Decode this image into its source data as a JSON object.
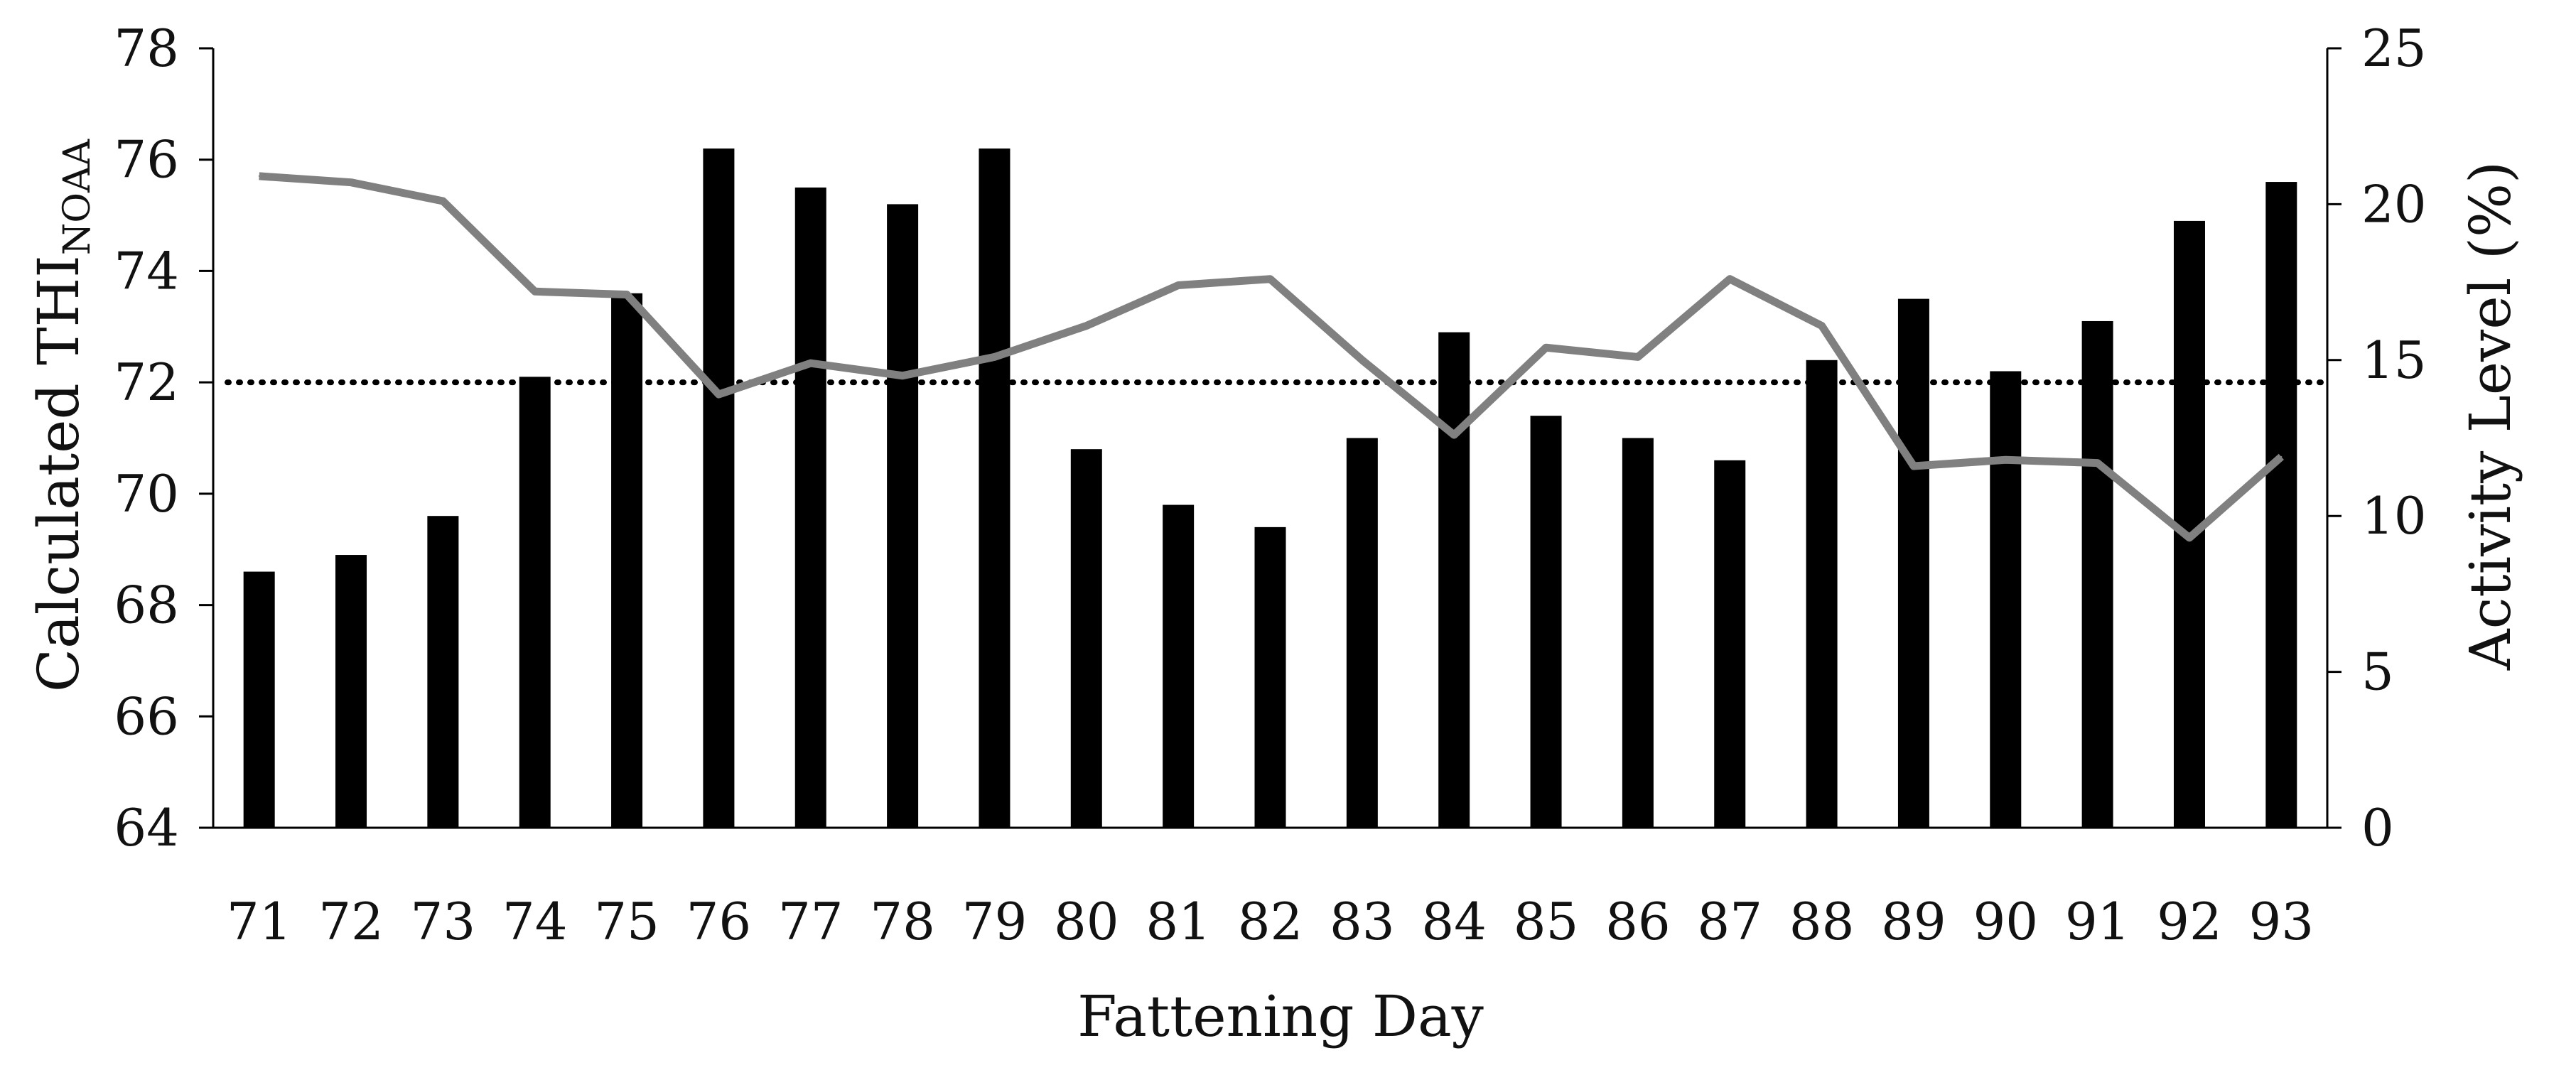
{
  "chart_data": {
    "type": "bar",
    "xlabel": "Fattening Day",
    "ylabel_left": {
      "main": "Calculated THI",
      "subscript": "NOAA"
    },
    "ylabel_right": "Activity Level (%)",
    "categories": [
      "71",
      "72",
      "73",
      "74",
      "75",
      "76",
      "77",
      "78",
      "79",
      "80",
      "81",
      "82",
      "83",
      "84",
      "85",
      "86",
      "87",
      "88",
      "89",
      "90",
      "91",
      "92",
      "93"
    ],
    "y_left": {
      "lim": [
        64,
        78
      ],
      "ticks": [
        "64",
        "66",
        "68",
        "70",
        "72",
        "74",
        "76",
        "78"
      ]
    },
    "y_right": {
      "lim": [
        0,
        25
      ],
      "ticks": [
        "0",
        "5",
        "10",
        "15",
        "20",
        "25"
      ]
    },
    "grid": false,
    "legend": "none",
    "series": [
      {
        "type": "bar",
        "axis": "left",
        "color": "#000000",
        "values": [
          68.6,
          68.9,
          69.6,
          72.1,
          73.6,
          76.2,
          75.5,
          75.2,
          76.2,
          70.8,
          69.8,
          69.4,
          71.0,
          72.9,
          71.4,
          71.0,
          70.6,
          72.4,
          73.5,
          72.2,
          73.1,
          74.9,
          75.6
        ]
      },
      {
        "type": "line",
        "axis": "right",
        "color": "#808080",
        "values": [
          20.9,
          20.7,
          20.1,
          17.2,
          17.1,
          13.9,
          14.9,
          14.5,
          15.1,
          16.1,
          17.4,
          17.6,
          15.0,
          12.6,
          15.4,
          15.1,
          17.6,
          16.1,
          11.6,
          11.8,
          11.7,
          9.3,
          11.9
        ]
      },
      {
        "type": "reference-line",
        "axis": "left",
        "style": "dotted",
        "color": "#000000",
        "value": 72
      }
    ]
  }
}
